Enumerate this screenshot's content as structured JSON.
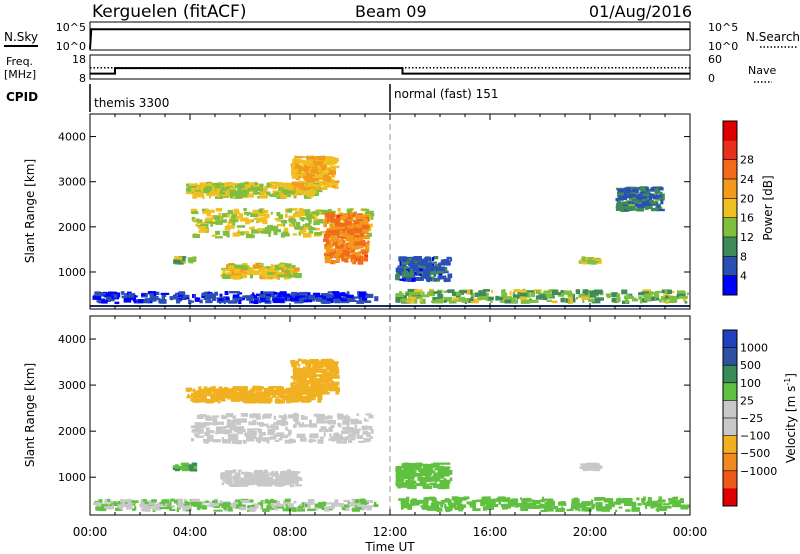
{
  "header": {
    "station": "Kerguelen (fitACF)",
    "beam": "Beam 09",
    "date": "01/Aug/2016"
  },
  "top_panels": {
    "nsky_label": "N.Sky",
    "nsky_ticks": [
      "10^5",
      "10^0"
    ],
    "nsearch_label": "N.Search",
    "nsearch_ticks": [
      "10^5",
      "10^0"
    ],
    "freq_label_1": "Freq.",
    "freq_label_2": "[MHz]",
    "freq_ticks": [
      "18",
      "8"
    ],
    "nave_label": "Nave",
    "nave_ticks": [
      "60",
      "0"
    ],
    "cpid_label": "CPID",
    "cpid_segments": [
      {
        "start_hour": 0,
        "end_hour": 12,
        "label": "themis 3300"
      },
      {
        "start_hour": 12,
        "end_hour": 24,
        "label": "normal (fast) 151"
      }
    ]
  },
  "xaxis": {
    "ticks": [
      "00:00",
      "04:00",
      "08:00",
      "12:00",
      "16:00",
      "20:00",
      "00:00"
    ],
    "label": "Time UT"
  },
  "power_panel": {
    "ylabel": "Slant Range [km]",
    "yticks": [
      "1000",
      "2000",
      "3000",
      "4000"
    ],
    "colorbar_label": "Power [dB]",
    "colorbar_ticks": [
      "4",
      "8",
      "12",
      "16",
      "20",
      "24",
      "28"
    ],
    "colorbar_colors": [
      "#0000ff",
      "#2a4fb5",
      "#3f8a5a",
      "#7fbf3f",
      "#f0c020",
      "#f39a1c",
      "#f26a1a",
      "#e8301a",
      "#dd0000"
    ]
  },
  "velocity_panel": {
    "ylabel": "Slant Range [km]",
    "yticks": [
      "1000",
      "2000",
      "3000",
      "4000"
    ],
    "colorbar_label": "Velocity [m s",
    "colorbar_unit_sup": "-1",
    "colorbar_unit_close": "]",
    "colorbar_ticks": [
      "1000",
      "500",
      "100",
      "25",
      "−25",
      "−100",
      "−500",
      "−1000"
    ],
    "colorbar_colors": [
      "#2040c0",
      "#3050a0",
      "#3a8a5a",
      "#60c040",
      "#c8c8c8",
      "#c8c8c8",
      "#f0b020",
      "#f08a20",
      "#ee5a1a",
      "#dd0000"
    ]
  },
  "chart_data": [
    {
      "type": "line",
      "title": "N.Sky / N.Search",
      "x_range_hours": [
        0,
        24
      ],
      "series": [
        {
          "name": "N.Sky",
          "x_hours": [
            0,
            0.05,
            24
          ],
          "values_log10": [
            0,
            3.8,
            3.8
          ]
        }
      ]
    },
    {
      "type": "line",
      "title": "Freq. / Nave",
      "x_range_hours": [
        0,
        24
      ],
      "ylim_mhz": [
        8,
        18
      ],
      "nave_lim": [
        0,
        60
      ],
      "series": [
        {
          "name": "Freq. [MHz]",
          "x_hours": [
            0,
            1,
            1,
            12.5,
            12.5,
            24
          ],
          "values": [
            10,
            10,
            12.5,
            12.5,
            10,
            10
          ]
        },
        {
          "name": "Nave",
          "x_hours": [
            0,
            24
          ],
          "values": [
            28,
            28
          ]
        }
      ]
    },
    {
      "type": "heatmap",
      "title": "Power [dB]",
      "xlim_hours": [
        0,
        24
      ],
      "ylim_km": [
        180,
        4500
      ],
      "colorbar_range": [
        0,
        32
      ],
      "regions": [
        {
          "hour_start": 0.1,
          "hour_end": 11.6,
          "range_start_km": 200,
          "range_end_km": 500,
          "level": 4
        },
        {
          "hour_start": 3.3,
          "hour_end": 4.3,
          "range_start_km": 1100,
          "range_end_km": 1300,
          "level": 12
        },
        {
          "hour_start": 5.2,
          "hour_end": 8.5,
          "range_start_km": 750,
          "range_end_km": 1150,
          "level": 16
        },
        {
          "hour_start": 4.0,
          "hour_end": 11.4,
          "range_start_km": 1700,
          "range_end_km": 2400,
          "level": 14
        },
        {
          "hour_start": 9.3,
          "hour_end": 11.2,
          "range_start_km": 1100,
          "range_end_km": 2300,
          "level": 22
        },
        {
          "hour_start": 3.8,
          "hour_end": 9.3,
          "range_start_km": 2600,
          "range_end_km": 3000,
          "level": 14
        },
        {
          "hour_start": 8.0,
          "hour_end": 10.0,
          "range_start_km": 2800,
          "range_end_km": 3600,
          "level": 18
        },
        {
          "hour_start": 12.2,
          "hour_end": 14.5,
          "range_start_km": 700,
          "range_end_km": 1300,
          "level": 6
        },
        {
          "hour_start": 12.2,
          "hour_end": 24,
          "range_start_km": 200,
          "range_end_km": 550,
          "level": 12
        },
        {
          "hour_start": 19.5,
          "hour_end": 20.5,
          "range_start_km": 1100,
          "range_end_km": 1300,
          "level": 14
        },
        {
          "hour_start": 21.0,
          "hour_end": 23.0,
          "range_start_km": 2300,
          "range_end_km": 2900,
          "level": 8
        }
      ]
    },
    {
      "type": "heatmap",
      "title": "Velocity [m s-1]",
      "xlim_hours": [
        0,
        24
      ],
      "ylim_km": [
        180,
        4500
      ],
      "colorbar_range": [
        -1000,
        1000
      ],
      "regions": [
        {
          "hour_start": 0.1,
          "hour_end": 11.6,
          "range_start_km": 200,
          "range_end_km": 500,
          "level": 25
        },
        {
          "hour_start": 3.3,
          "hour_end": 4.3,
          "range_start_km": 1100,
          "range_end_km": 1300,
          "level": 100
        },
        {
          "hour_start": 5.2,
          "hour_end": 8.5,
          "range_start_km": 750,
          "range_end_km": 1150,
          "level": 0
        },
        {
          "hour_start": 4.0,
          "hour_end": 11.4,
          "range_start_km": 1700,
          "range_end_km": 2400,
          "level": 0
        },
        {
          "hour_start": 3.8,
          "hour_end": 9.3,
          "range_start_km": 2600,
          "range_end_km": 3000,
          "level": -300
        },
        {
          "hour_start": 8.0,
          "hour_end": 10.0,
          "range_start_km": 2800,
          "range_end_km": 3600,
          "level": -350
        },
        {
          "hour_start": 12.2,
          "hour_end": 14.5,
          "range_start_km": 700,
          "range_end_km": 1300,
          "level": 60
        },
        {
          "hour_start": 12.2,
          "hour_end": 24,
          "range_start_km": 200,
          "range_end_km": 550,
          "level": 60
        },
        {
          "hour_start": 19.5,
          "hour_end": 20.5,
          "range_start_km": 1100,
          "range_end_km": 1300,
          "level": -60
        }
      ]
    }
  ]
}
